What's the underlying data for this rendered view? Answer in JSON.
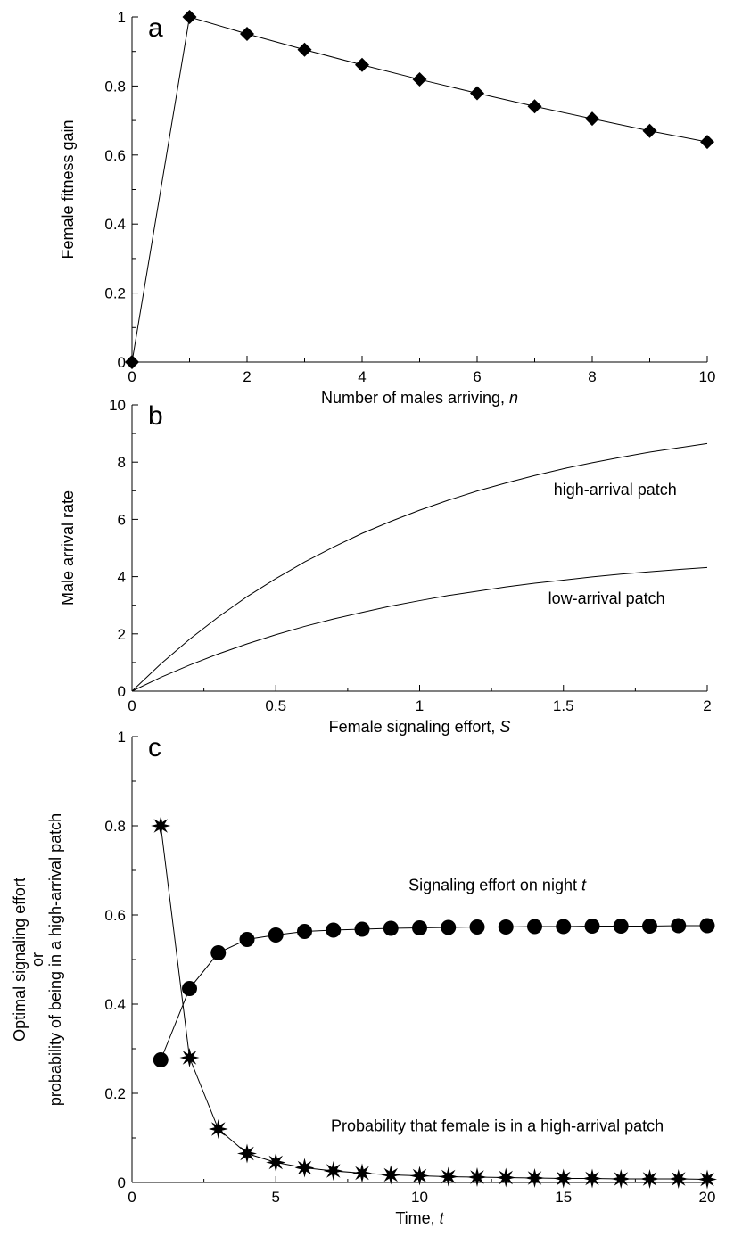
{
  "chart_data": [
    {
      "id": "a",
      "type": "line",
      "panel_label": "a",
      "xlabel": "Number of males arriving, ",
      "xlabel_var": "n",
      "ylabel": "Female fitness gain",
      "xlim": [
        0,
        10
      ],
      "ylim": [
        0,
        1
      ],
      "xticks": [
        0,
        2,
        4,
        6,
        8,
        10
      ],
      "yticks": [
        0,
        0.2,
        0.4,
        0.6,
        0.8,
        1
      ],
      "xtick_labels": [
        "0",
        "2",
        "4",
        "6",
        "8",
        "10"
      ],
      "ytick_labels": [
        "0",
        "0.2",
        "0.4",
        "0.6",
        "0.8",
        "1"
      ],
      "series": [
        {
          "marker": "diamond",
          "x": [
            0,
            1,
            2,
            3,
            4,
            5,
            6,
            7,
            8,
            9,
            10
          ],
          "y": [
            0,
            1,
            0.951,
            0.905,
            0.861,
            0.819,
            0.779,
            0.741,
            0.705,
            0.67,
            0.638
          ]
        }
      ],
      "annotations": []
    },
    {
      "id": "b",
      "type": "line",
      "panel_label": "b",
      "xlabel": "Female signaling effort, ",
      "xlabel_var": "S",
      "ylabel": "Male arrival rate",
      "xlim": [
        0,
        2
      ],
      "ylim": [
        0,
        10
      ],
      "xticks": [
        0,
        0.5,
        1,
        1.5,
        2
      ],
      "yticks": [
        0,
        2,
        4,
        6,
        8,
        10
      ],
      "xtick_labels": [
        "0",
        "0.5",
        "1",
        "1.5",
        "2"
      ],
      "ytick_labels": [
        "0",
        "2",
        "4",
        "6",
        "8",
        "10"
      ],
      "series": [
        {
          "marker": "none",
          "x": [
            0,
            0.1,
            0.2,
            0.3,
            0.4,
            0.5,
            0.6,
            0.7,
            0.8,
            0.9,
            1.0,
            1.1,
            1.2,
            1.3,
            1.4,
            1.5,
            1.6,
            1.7,
            1.8,
            1.9,
            2.0
          ],
          "y": [
            0,
            0.95,
            1.81,
            2.59,
            3.3,
            3.93,
            4.51,
            5.03,
            5.51,
            5.93,
            6.32,
            6.67,
            6.99,
            7.27,
            7.53,
            7.77,
            7.98,
            8.17,
            8.35,
            8.5,
            8.65
          ]
        },
        {
          "marker": "none",
          "x": [
            0,
            0.1,
            0.2,
            0.3,
            0.4,
            0.5,
            0.6,
            0.7,
            0.8,
            0.9,
            1.0,
            1.1,
            1.2,
            1.3,
            1.4,
            1.5,
            1.6,
            1.7,
            1.8,
            1.9,
            2.0
          ],
          "y": [
            0,
            0.48,
            0.91,
            1.3,
            1.65,
            1.97,
            2.26,
            2.52,
            2.75,
            2.97,
            3.16,
            3.34,
            3.49,
            3.64,
            3.77,
            3.88,
            3.99,
            4.09,
            4.17,
            4.25,
            4.32
          ]
        }
      ],
      "annotations": [
        {
          "text": "high-arrival patch",
          "x": 1.68,
          "y": 6.85
        },
        {
          "text": "low-arrival patch",
          "x": 1.65,
          "y": 3.05
        }
      ]
    },
    {
      "id": "c",
      "type": "line",
      "panel_label": "c",
      "xlabel": "Time, ",
      "xlabel_var": "t",
      "ylabel_lines": [
        "Optimal signaling effort",
        "or",
        "probability of being in a high-arrival patch"
      ],
      "xlim": [
        0,
        20
      ],
      "ylim": [
        0,
        1
      ],
      "xticks": [
        0,
        5,
        10,
        15,
        20
      ],
      "yticks": [
        0,
        0.2,
        0.4,
        0.6,
        0.8,
        1
      ],
      "xtick_labels": [
        "0",
        "5",
        "10",
        "15",
        "20"
      ],
      "ytick_labels": [
        "0",
        "0.2",
        "0.4",
        "0.6",
        "0.8",
        "1"
      ],
      "series": [
        {
          "marker": "circle",
          "x": [
            1,
            2,
            3,
            4,
            5,
            6,
            7,
            8,
            9,
            10,
            11,
            12,
            13,
            14,
            15,
            16,
            17,
            18,
            19,
            20
          ],
          "y": [
            0.275,
            0.435,
            0.515,
            0.545,
            0.555,
            0.563,
            0.566,
            0.568,
            0.57,
            0.571,
            0.572,
            0.573,
            0.573,
            0.574,
            0.574,
            0.575,
            0.575,
            0.575,
            0.576,
            0.576
          ]
        },
        {
          "marker": "star",
          "x": [
            1,
            2,
            3,
            4,
            5,
            6,
            7,
            8,
            9,
            10,
            11,
            12,
            13,
            14,
            15,
            16,
            17,
            18,
            19,
            20
          ],
          "y": [
            0.8,
            0.28,
            0.12,
            0.065,
            0.045,
            0.033,
            0.026,
            0.021,
            0.017,
            0.015,
            0.013,
            0.012,
            0.011,
            0.01,
            0.009,
            0.009,
            0.008,
            0.008,
            0.008,
            0.007
          ]
        }
      ],
      "annotations": [
        {
          "text": "Signaling effort on night ",
          "var": "t",
          "x": 12.7,
          "y": 0.655
        },
        {
          "text": "Probability that female is in a high-arrival patch",
          "x": 12.7,
          "y": 0.115
        }
      ]
    }
  ]
}
